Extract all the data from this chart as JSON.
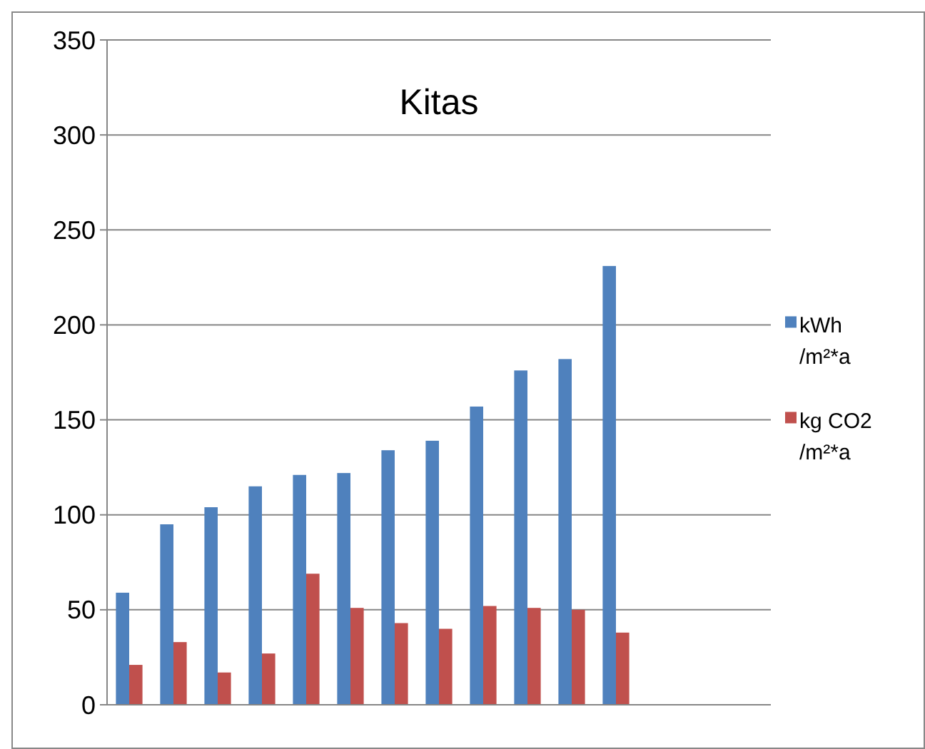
{
  "chart_data": {
    "type": "bar",
    "title": "Kitas",
    "categories": [
      null,
      null,
      null,
      null,
      null,
      null,
      null,
      null,
      null,
      null,
      null,
      null,
      null,
      null,
      null
    ],
    "series": [
      {
        "name": "kWh /m²*a",
        "color": "#4f81bd",
        "values": [
          59,
          95,
          104,
          115,
          121,
          122,
          134,
          139,
          157,
          176,
          182,
          231,
          null,
          null,
          null
        ]
      },
      {
        "name": "kg CO2 /m²*a",
        "color": "#c0504d",
        "values": [
          21,
          33,
          17,
          27,
          69,
          51,
          43,
          40,
          52,
          51,
          50,
          38,
          null,
          null,
          null
        ]
      }
    ],
    "ylim": [
      0,
      350
    ],
    "yticks": [
      0,
      50,
      100,
      150,
      200,
      250,
      300,
      350
    ],
    "grid": "y",
    "legend": "right"
  }
}
